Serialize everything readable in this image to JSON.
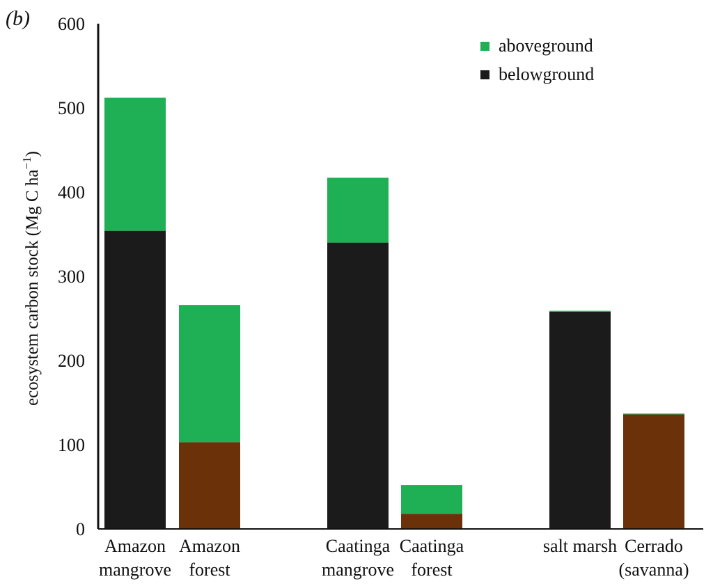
{
  "panel_label": "(b)",
  "colors": {
    "aboveground": "#1faf55",
    "belowground": "#1b1b1b",
    "belowground_upland": "#6b320a",
    "axis": "#111111"
  },
  "chart_data": {
    "type": "bar",
    "stacked": true,
    "title": "",
    "xlabel": "",
    "ylabel": "ecosystem carbon stock (Mg C ha",
    "ylabel_superscript": "−1",
    "ylabel_suffix": ")",
    "ylim": [
      0,
      600
    ],
    "yticks": [
      0,
      100,
      200,
      300,
      400,
      500,
      600
    ],
    "grid": false,
    "legend_position": "top-right",
    "legend": [
      {
        "label": "aboveground",
        "color_key": "aboveground"
      },
      {
        "label": "belowground",
        "color_key": "belowground"
      }
    ],
    "categories": [
      {
        "lines": [
          "Amazon",
          "mangrove"
        ],
        "group": 0
      },
      {
        "lines": [
          "Amazon",
          "forest"
        ],
        "group": 0
      },
      {
        "lines": [
          "Caatinga",
          "mangrove"
        ],
        "group": 1
      },
      {
        "lines": [
          "Caatinga",
          "forest"
        ],
        "group": 1
      },
      {
        "lines": [
          "salt marsh"
        ],
        "group": 2
      },
      {
        "lines": [
          "Cerrado",
          "(savanna)"
        ],
        "group": 2
      }
    ],
    "series": [
      {
        "name": "belowground",
        "values": [
          354,
          103,
          340,
          18,
          258,
          136
        ],
        "colors": [
          "belowground",
          "belowground_upland",
          "belowground",
          "belowground_upland",
          "belowground",
          "belowground_upland"
        ]
      },
      {
        "name": "aboveground",
        "values": [
          158,
          163,
          77,
          34,
          1,
          1
        ],
        "colors": [
          "aboveground",
          "aboveground",
          "aboveground",
          "aboveground",
          "aboveground",
          "aboveground"
        ]
      }
    ]
  }
}
